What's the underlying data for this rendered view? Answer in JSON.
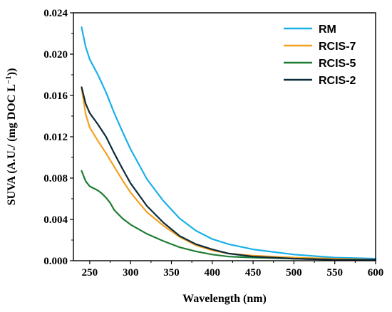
{
  "chart_data": {
    "type": "line",
    "title": "",
    "xlabel": "Wavelength (nm)",
    "ylabel_prefix": "SUVA (A.U./ (mg DOC L",
    "ylabel_sup": "−1",
    "ylabel_suffix": "))",
    "xlim": [
      230,
      600
    ],
    "ylim": [
      0,
      0.024
    ],
    "x_ticks": [
      250,
      300,
      350,
      400,
      450,
      500,
      550,
      600
    ],
    "y_ticks": [
      0.0,
      0.004,
      0.008,
      0.012,
      0.016,
      0.02,
      0.024
    ],
    "y_tick_labels": [
      "0.000",
      "0.004",
      "0.008",
      "0.012",
      "0.016",
      "0.020",
      "0.024"
    ],
    "legend_position": "top-right",
    "grid": false,
    "series": [
      {
        "name": "RM",
        "color": "#1ab0e8",
        "points": [
          [
            240,
            0.0226
          ],
          [
            245,
            0.0207
          ],
          [
            250,
            0.0195
          ],
          [
            260,
            0.018
          ],
          [
            270,
            0.0163
          ],
          [
            280,
            0.0143
          ],
          [
            290,
            0.0125
          ],
          [
            300,
            0.0108
          ],
          [
            320,
            0.0079
          ],
          [
            340,
            0.0058
          ],
          [
            360,
            0.0041
          ],
          [
            380,
            0.0029
          ],
          [
            400,
            0.0021
          ],
          [
            420,
            0.0016
          ],
          [
            450,
            0.0011
          ],
          [
            500,
            0.0006
          ],
          [
            550,
            0.0003
          ],
          [
            600,
            0.0002
          ]
        ]
      },
      {
        "name": "RCIS-7",
        "color": "#f5a020",
        "points": [
          [
            240,
            0.0167
          ],
          [
            245,
            0.0142
          ],
          [
            250,
            0.0129
          ],
          [
            260,
            0.0116
          ],
          [
            270,
            0.0104
          ],
          [
            280,
            0.0091
          ],
          [
            290,
            0.0078
          ],
          [
            300,
            0.0066
          ],
          [
            320,
            0.0047
          ],
          [
            340,
            0.0034
          ],
          [
            360,
            0.0023
          ],
          [
            380,
            0.0015
          ],
          [
            400,
            0.001
          ],
          [
            420,
            0.0007
          ],
          [
            450,
            0.0005
          ],
          [
            500,
            0.0003
          ],
          [
            550,
            0.0002
          ],
          [
            600,
            0.0001
          ]
        ]
      },
      {
        "name": "RCIS-5",
        "color": "#1e7d32",
        "points": [
          [
            240,
            0.0087
          ],
          [
            245,
            0.0077
          ],
          [
            250,
            0.0072
          ],
          [
            260,
            0.0068
          ],
          [
            265,
            0.0065
          ],
          [
            270,
            0.0061
          ],
          [
            275,
            0.0056
          ],
          [
            280,
            0.0049
          ],
          [
            290,
            0.0041
          ],
          [
            300,
            0.0035
          ],
          [
            320,
            0.0026
          ],
          [
            340,
            0.0019
          ],
          [
            360,
            0.0013
          ],
          [
            380,
            0.0009
          ],
          [
            400,
            0.0006
          ],
          [
            420,
            0.0004
          ],
          [
            450,
            0.0003
          ],
          [
            500,
            0.0002
          ],
          [
            550,
            0.0001
          ],
          [
            600,
            0.0001
          ]
        ]
      },
      {
        "name": "RCIS-2",
        "color": "#0c2b3b",
        "points": [
          [
            240,
            0.0168
          ],
          [
            245,
            0.0152
          ],
          [
            250,
            0.0143
          ],
          [
            260,
            0.0132
          ],
          [
            270,
            0.012
          ],
          [
            280,
            0.0104
          ],
          [
            290,
            0.0089
          ],
          [
            300,
            0.0075
          ],
          [
            320,
            0.0053
          ],
          [
            340,
            0.0037
          ],
          [
            360,
            0.0024
          ],
          [
            380,
            0.0016
          ],
          [
            400,
            0.0011
          ],
          [
            420,
            0.0007
          ],
          [
            450,
            0.0004
          ],
          [
            500,
            0.0002
          ],
          [
            550,
            0.0001
          ],
          [
            600,
            0.0001
          ]
        ]
      }
    ]
  }
}
